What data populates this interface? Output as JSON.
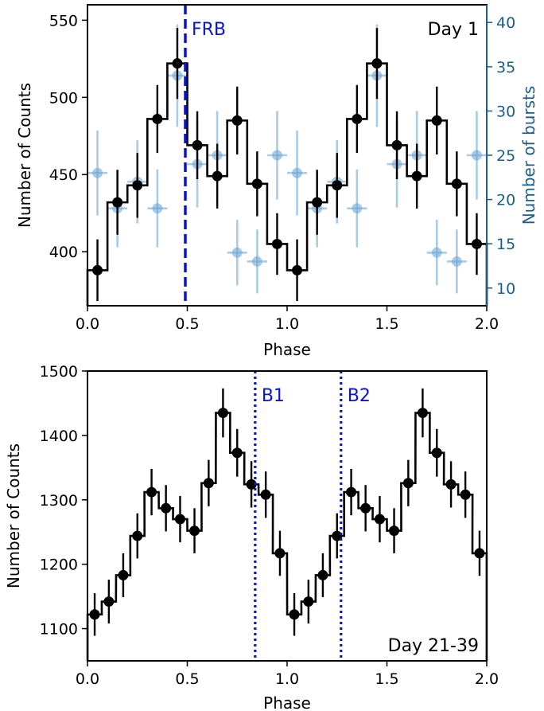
{
  "chart_data": [
    {
      "type": "line",
      "panel_label": "Day 1",
      "xlabel": "Phase",
      "ylabel": "Number of Counts",
      "y2label": "Number of bursts",
      "xlim": [
        0.0,
        2.0
      ],
      "ylim": [
        365,
        560
      ],
      "y2lim": [
        8,
        42
      ],
      "xticks": [
        "0.0",
        "0.5",
        "1.0",
        "1.5",
        "2.0"
      ],
      "yticks": [
        "400",
        "450",
        "500",
        "550"
      ],
      "y2ticks": [
        "10",
        "15",
        "20",
        "25",
        "30",
        "35",
        "40"
      ],
      "bin_width": 0.1,
      "counts": {
        "x": [
          0.05,
          0.15,
          0.25,
          0.35,
          0.45,
          0.55,
          0.65,
          0.75,
          0.85,
          0.95,
          1.05,
          1.15,
          1.25,
          1.35,
          1.45,
          1.55,
          1.65,
          1.75,
          1.85,
          1.95
        ],
        "y": [
          388,
          432,
          443,
          486,
          522,
          469,
          449,
          485,
          444,
          405,
          388,
          432,
          443,
          486,
          522,
          469,
          449,
          485,
          444,
          405
        ],
        "err": [
          20,
          21,
          21,
          22,
          23,
          22,
          21,
          22,
          21,
          20,
          20,
          21,
          21,
          22,
          23,
          22,
          21,
          22,
          21,
          20
        ],
        "color": "#000000"
      },
      "bursts": {
        "x": [
          0.05,
          0.15,
          0.25,
          0.35,
          0.45,
          0.55,
          0.65,
          0.75,
          0.85,
          0.95,
          1.05,
          1.15,
          1.25,
          1.35,
          1.45,
          1.55,
          1.65,
          1.75,
          1.85,
          1.95
        ],
        "y": [
          23,
          19,
          22,
          19,
          34,
          24,
          25,
          14,
          13,
          25,
          23,
          19,
          22,
          19,
          34,
          24,
          25,
          14,
          13,
          25
        ],
        "err": [
          4.8,
          4.4,
          4.7,
          4.4,
          5.8,
          4.9,
          5.0,
          3.7,
          3.6,
          5.0,
          4.8,
          4.4,
          4.7,
          4.4,
          5.8,
          4.9,
          5.0,
          3.7,
          3.6,
          5.0
        ],
        "color": "#6fa8d6"
      },
      "markers": [
        {
          "label": "FRB",
          "x": 0.49,
          "style": "dashed",
          "color": "#0a14d4"
        }
      ]
    },
    {
      "type": "line",
      "panel_label": "Day 21-39",
      "xlabel": "Phase",
      "ylabel": "Number of Counts",
      "xlim": [
        0.0,
        2.0
      ],
      "ylim": [
        1050,
        1500
      ],
      "xticks": [
        "0.0",
        "0.5",
        "1.0",
        "1.5",
        "2.0"
      ],
      "yticks": [
        "1100",
        "1200",
        "1300",
        "1400",
        "1500"
      ],
      "bin_width": 0.0714,
      "counts": {
        "x": [
          0.036,
          0.107,
          0.179,
          0.25,
          0.321,
          0.393,
          0.464,
          0.536,
          0.607,
          0.679,
          0.75,
          0.821,
          0.893,
          0.964,
          1.036,
          1.107,
          1.179,
          1.25,
          1.321,
          1.393,
          1.464,
          1.536,
          1.607,
          1.679,
          1.75,
          1.821,
          1.893,
          1.964
        ],
        "y": [
          1122,
          1142,
          1183,
          1244,
          1312,
          1287,
          1270,
          1252,
          1326,
          1435,
          1373,
          1324,
          1308,
          1217,
          1122,
          1142,
          1183,
          1244,
          1312,
          1287,
          1270,
          1252,
          1326,
          1435,
          1373,
          1324,
          1308,
          1217
        ],
        "err": [
          33,
          34,
          34,
          35,
          36,
          36,
          36,
          35,
          36,
          38,
          37,
          36,
          36,
          35,
          33,
          34,
          34,
          35,
          36,
          36,
          36,
          35,
          36,
          38,
          37,
          36,
          36,
          35
        ],
        "color": "#000000"
      },
      "markers": [
        {
          "label": "B1",
          "x": 0.84,
          "style": "dotted",
          "color": "#0a14d4"
        },
        {
          "label": "B2",
          "x": 1.27,
          "style": "dotted",
          "color": "#0a14d4"
        }
      ]
    }
  ]
}
